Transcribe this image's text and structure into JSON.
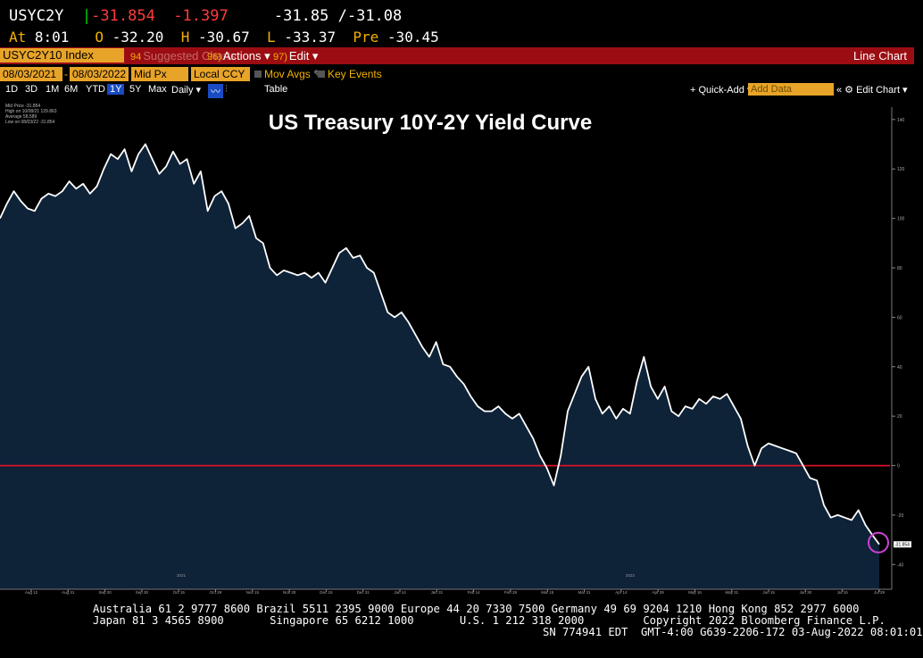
{
  "quote": {
    "ticker": "USYC2Y",
    "last": "31.854",
    "last_sign": "-",
    "change": "-1.397",
    "range_low": "-31.85",
    "range_high": "-31.08",
    "at_label": "At",
    "at_time": "8:01",
    "open_label": "O",
    "open": "-32.20",
    "high_label": "H",
    "high": "-30.67",
    "low_label": "L",
    "low": "-33.37",
    "pre_label": "Pre",
    "pre": "-30.45"
  },
  "toolbar1": {
    "ticker_field": "USYC2Y10 Index",
    "suggested_num": "94",
    "suggested": "Suggested Charts",
    "actions_num": "96)",
    "actions": "Actions ▾",
    "edit_num": "97)",
    "edit": "Edit ▾",
    "chart_type": "Line Chart"
  },
  "toolbar2": {
    "start_date": "08/03/2021",
    "end_date": "08/03/2022",
    "price_field": "Mid Px",
    "currency_field": "Local CCY",
    "mov_avgs": "Mov Avgs",
    "key_events": "Key Events"
  },
  "toolbar3": {
    "timeframes": [
      "1D",
      "3D",
      "1M",
      "6M",
      "YTD",
      "1Y",
      "5Y",
      "Max"
    ],
    "selected": "1Y",
    "period": "Daily ▾",
    "table": "Table",
    "quick_add": "+ Quick-Add ▾",
    "add_data_placeholder": "Add Data",
    "edit_chart": "« ⚙ Edit Chart ▾"
  },
  "chart_data": {
    "type": "line",
    "title": "US Treasury 10Y-2Y Yield Curve",
    "ylim": [
      -50,
      145
    ],
    "yticks": [
      140,
      120,
      100,
      80,
      60,
      40,
      20,
      0,
      -20,
      -40
    ],
    "ytick_labels": [
      "140",
      "120",
      "100",
      "80",
      "60",
      "40",
      "20",
      "0",
      "-20",
      "-40"
    ],
    "xtick_labels": [
      "Aug 12",
      "Aug 31",
      "Sep 20",
      "Sep 30",
      "Oct 15",
      "Oct 29",
      "Nov 15",
      "Nov 30",
      "Dec 15",
      "Dec 31",
      "Jan 14",
      "Jan 31",
      "Feb 14",
      "Feb 28",
      "Mar 15",
      "Mar 31",
      "Apr 14",
      "Apr 29",
      "May 16",
      "May 31",
      "Jun 15",
      "Jun 30",
      "Jul 15",
      "Jul 29"
    ],
    "year_labels": [
      "2021",
      "2022"
    ],
    "grid": false,
    "zero_line": 0,
    "zero_line_color": "#e8102a",
    "line_color": "#ffffff",
    "fill_color": "#0e2238",
    "series": [
      {
        "values": [
          100,
          106,
          111,
          107,
          104,
          103,
          108,
          110,
          109,
          111,
          115,
          112,
          114,
          110,
          113,
          120,
          126,
          124,
          128,
          119,
          126,
          130,
          124,
          118,
          121,
          127,
          122,
          124,
          114,
          119,
          103,
          109,
          111,
          106,
          96,
          98,
          101,
          92,
          90,
          80,
          77,
          79,
          78,
          77,
          78,
          76,
          78,
          74,
          80,
          86,
          88,
          84,
          85,
          80,
          78,
          70,
          62,
          60,
          62,
          58,
          53,
          48,
          44,
          50,
          41,
          40,
          36,
          33,
          28,
          24,
          22,
          22,
          24,
          21,
          19,
          21,
          16,
          11,
          4,
          -1,
          -8,
          4,
          22,
          29,
          36,
          40,
          27,
          21,
          24,
          19,
          23,
          21,
          34,
          44,
          32,
          27,
          32,
          22,
          20,
          24,
          23,
          27,
          25,
          28,
          27,
          29,
          24,
          19,
          8,
          0,
          7,
          9,
          8,
          7,
          6,
          5,
          0,
          -5,
          -6,
          -16,
          -21,
          -20,
          -21,
          -22,
          -18,
          -24,
          -28,
          -31.854
        ]
      }
    ],
    "last_value_label": "-31.854"
  },
  "legend": {
    "lines": [
      "Mid Price  -31.854",
      "High on 10/08/21  129.863",
      "Average  58.589",
      "Low on 08/03/22  -31.854"
    ]
  },
  "footer": {
    "line1": "Australia 61 2 9777 8600 Brazil 5511 2395 9000 Europe 44 20 7330 7500 Germany 49 69 9204 1210 Hong Kong 852 2977 6000",
    "line2": "Japan 81 3 4565 8900       Singapore 65 6212 1000       U.S. 1 212 318 2000         Copyright 2022 Bloomberg Finance L.P.",
    "line3": "SN 774941 EDT  GMT-4:00 G639-2206-172 03-Aug-2022 08:01:01"
  }
}
